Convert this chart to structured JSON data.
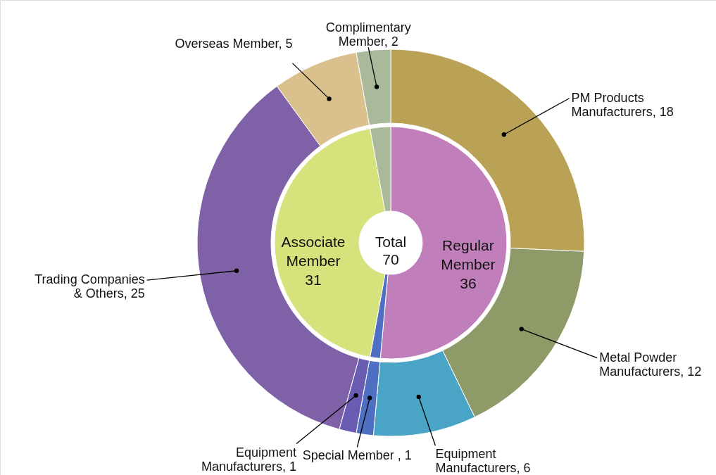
{
  "chart_data": {
    "type": "donut",
    "annotations": [
      "Total 70"
    ],
    "series": [
      {
        "values": [
          36,
          1,
          31,
          2
        ],
        "colors": [
          "#c07fba",
          "#4f70c2",
          "#d6e27c",
          "#a9b99a"
        ],
        "value_labels": [
          "Regular Member 36",
          null,
          "Associate Member 31",
          null
        ]
      },
      {
        "values": [
          18,
          12,
          6,
          1,
          1,
          25,
          5,
          2
        ],
        "colors": [
          "#b9a155",
          "#8e9a68",
          "#4aa4c6",
          "#4f70c2",
          "#6a5cb2",
          "#7f61a8",
          "#d9c08c",
          "#a9b99a"
        ],
        "value_labels": [
          "PM Products Manufacturers, 18",
          "Metal Powder Manufacturers, 12",
          "Equipment Manufacturers, 6",
          "Special Member , 1",
          "Equipment Manufacturers, 1",
          "Trading Companies & Others, 25",
          "Overseas Member, 5",
          "Complimentary Member, 2"
        ]
      }
    ]
  }
}
